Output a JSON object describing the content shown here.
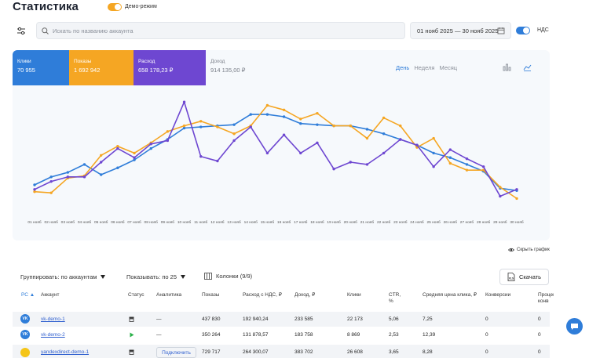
{
  "header": {
    "title": "Статистика",
    "demo_label": "Демо-режим",
    "search_placeholder": "Искать по названию аккаунта",
    "date_range": "01 нояб 2025 — 30 нояб 2025",
    "nds_label": "НДС"
  },
  "metrics": [
    {
      "label": "Клики",
      "value": "70 955"
    },
    {
      "label": "Показы",
      "value": "1 692 942"
    },
    {
      "label": "Расход",
      "value": "658 178,23 ₽"
    },
    {
      "label": "Доход",
      "value": "914 135,00 ₽"
    }
  ],
  "periods": [
    "День",
    "Неделя",
    "Месяц"
  ],
  "hide_chart_label": "Скрыть график",
  "toolbar": {
    "group_label": "Группировать: по аккаунтам",
    "show_label": "Показывать: по 25",
    "columns_label": "Колонки (9/9)",
    "download_label": "Скачать"
  },
  "table": {
    "headers": [
      "РС",
      "Аккаунт",
      "Статус",
      "Аналитика",
      "Показы",
      "Расход с НДС, ₽",
      "Доход, ₽",
      "Клики",
      "CTR, %",
      "Средняя цена клика, ₽",
      "Конверсии",
      "Процент конв"
    ],
    "rows": [
      {
        "account": "vk-demo-1",
        "analytics": "—",
        "views": "437 830",
        "spend": "192 940,24",
        "income": "233 585",
        "clicks": "22 173",
        "ctr": "5,06",
        "cpc": "7,25",
        "conv": "0",
        "convp": "0"
      },
      {
        "account": "vk-demo-2",
        "analytics": "—",
        "views": "350 264",
        "spend": "131 878,57",
        "income": "183 758",
        "clicks": "8 869",
        "ctr": "2,53",
        "cpc": "12,39",
        "conv": "0",
        "convp": "0"
      },
      {
        "account": "yandexdirect-demo-1",
        "analytics": "Подключить",
        "views": "729 717",
        "spend": "264 300,07",
        "income": "383 702",
        "clicks": "26 608",
        "ctr": "3,65",
        "cpc": "8,28",
        "conv": "0",
        "convp": "0"
      }
    ]
  },
  "chart_data": {
    "type": "line",
    "x": [
      "01 нояб",
      "02 нояб",
      "03 нояб",
      "04 нояб",
      "05 нояб",
      "06 нояб",
      "07 нояб",
      "08 нояб",
      "09 нояб",
      "10 нояб",
      "11 нояб",
      "12 нояб",
      "13 нояб",
      "14 нояб",
      "15 нояб",
      "16 нояб",
      "17 нояб",
      "18 нояб",
      "19 нояб",
      "20 нояб",
      "21 нояб",
      "22 нояб",
      "23 нояб",
      "24 нояб",
      "25 нояб",
      "26 нояб",
      "27 нояб",
      "28 нояб",
      "29 нояб",
      "30 нояб"
    ],
    "series": [
      {
        "color": "#2f7dd9",
        "values": [
          20,
          27,
          31,
          38,
          29,
          35,
          42,
          52,
          60,
          70,
          71,
          72,
          73,
          82,
          82,
          80,
          74,
          73,
          72,
          72,
          69,
          65,
          60,
          55,
          48,
          44,
          38,
          32,
          17,
          15
        ]
      },
      {
        "color": "#f5a623",
        "values": [
          14,
          13,
          26,
          28,
          46,
          54,
          48,
          57,
          67,
          72,
          76,
          71,
          65,
          72,
          90,
          86,
          78,
          83,
          72,
          72,
          61,
          79,
          72,
          53,
          61,
          39,
          33,
          33,
          18,
          8
        ]
      },
      {
        "color": "#6e47d1",
        "values": [
          16,
          23,
          27,
          27,
          40,
          52,
          44,
          56,
          59,
          93,
          45,
          41,
          59,
          71,
          48,
          64,
          48,
          57,
          34,
          40,
          38,
          48,
          60,
          55,
          36,
          51,
          43,
          36,
          10,
          16
        ]
      }
    ],
    "ylim": [
      0,
      100
    ],
    "grid": false
  }
}
